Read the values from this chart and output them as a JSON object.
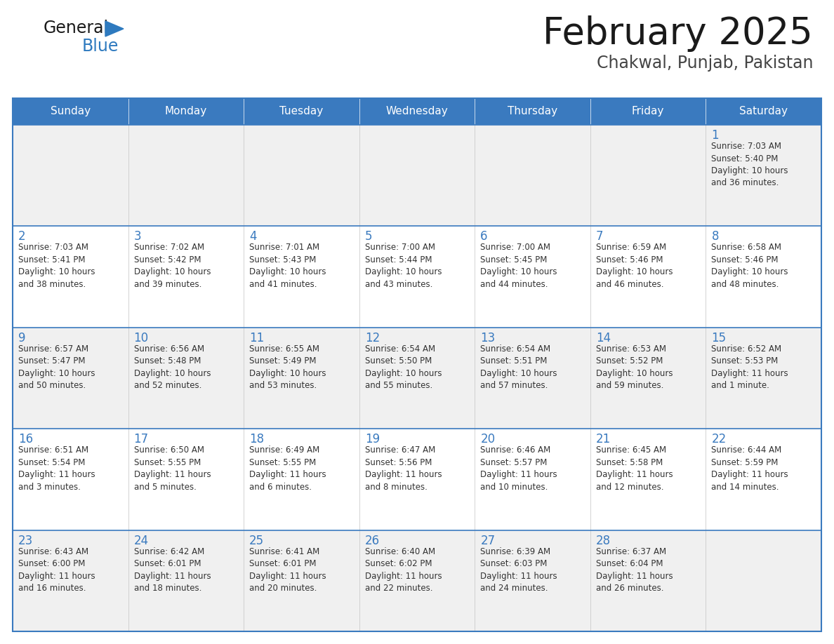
{
  "title": "February 2025",
  "subtitle": "Chakwal, Punjab, Pakistan",
  "header_bg": "#3a7abf",
  "header_text_color": "#ffffff",
  "cell_bg_odd": "#f0f0f0",
  "cell_bg_even": "#ffffff",
  "cell_text_color": "#333333",
  "day_number_color": "#3a7abf",
  "border_color": "#3a7abf",
  "separator_color": "#3a7abf",
  "days_of_week": [
    "Sunday",
    "Monday",
    "Tuesday",
    "Wednesday",
    "Thursday",
    "Friday",
    "Saturday"
  ],
  "weeks": [
    [
      {
        "day": null,
        "info": null
      },
      {
        "day": null,
        "info": null
      },
      {
        "day": null,
        "info": null
      },
      {
        "day": null,
        "info": null
      },
      {
        "day": null,
        "info": null
      },
      {
        "day": null,
        "info": null
      },
      {
        "day": 1,
        "info": "Sunrise: 7:03 AM\nSunset: 5:40 PM\nDaylight: 10 hours\nand 36 minutes."
      }
    ],
    [
      {
        "day": 2,
        "info": "Sunrise: 7:03 AM\nSunset: 5:41 PM\nDaylight: 10 hours\nand 38 minutes."
      },
      {
        "day": 3,
        "info": "Sunrise: 7:02 AM\nSunset: 5:42 PM\nDaylight: 10 hours\nand 39 minutes."
      },
      {
        "day": 4,
        "info": "Sunrise: 7:01 AM\nSunset: 5:43 PM\nDaylight: 10 hours\nand 41 minutes."
      },
      {
        "day": 5,
        "info": "Sunrise: 7:00 AM\nSunset: 5:44 PM\nDaylight: 10 hours\nand 43 minutes."
      },
      {
        "day": 6,
        "info": "Sunrise: 7:00 AM\nSunset: 5:45 PM\nDaylight: 10 hours\nand 44 minutes."
      },
      {
        "day": 7,
        "info": "Sunrise: 6:59 AM\nSunset: 5:46 PM\nDaylight: 10 hours\nand 46 minutes."
      },
      {
        "day": 8,
        "info": "Sunrise: 6:58 AM\nSunset: 5:46 PM\nDaylight: 10 hours\nand 48 minutes."
      }
    ],
    [
      {
        "day": 9,
        "info": "Sunrise: 6:57 AM\nSunset: 5:47 PM\nDaylight: 10 hours\nand 50 minutes."
      },
      {
        "day": 10,
        "info": "Sunrise: 6:56 AM\nSunset: 5:48 PM\nDaylight: 10 hours\nand 52 minutes."
      },
      {
        "day": 11,
        "info": "Sunrise: 6:55 AM\nSunset: 5:49 PM\nDaylight: 10 hours\nand 53 minutes."
      },
      {
        "day": 12,
        "info": "Sunrise: 6:54 AM\nSunset: 5:50 PM\nDaylight: 10 hours\nand 55 minutes."
      },
      {
        "day": 13,
        "info": "Sunrise: 6:54 AM\nSunset: 5:51 PM\nDaylight: 10 hours\nand 57 minutes."
      },
      {
        "day": 14,
        "info": "Sunrise: 6:53 AM\nSunset: 5:52 PM\nDaylight: 10 hours\nand 59 minutes."
      },
      {
        "day": 15,
        "info": "Sunrise: 6:52 AM\nSunset: 5:53 PM\nDaylight: 11 hours\nand 1 minute."
      }
    ],
    [
      {
        "day": 16,
        "info": "Sunrise: 6:51 AM\nSunset: 5:54 PM\nDaylight: 11 hours\nand 3 minutes."
      },
      {
        "day": 17,
        "info": "Sunrise: 6:50 AM\nSunset: 5:55 PM\nDaylight: 11 hours\nand 5 minutes."
      },
      {
        "day": 18,
        "info": "Sunrise: 6:49 AM\nSunset: 5:55 PM\nDaylight: 11 hours\nand 6 minutes."
      },
      {
        "day": 19,
        "info": "Sunrise: 6:47 AM\nSunset: 5:56 PM\nDaylight: 11 hours\nand 8 minutes."
      },
      {
        "day": 20,
        "info": "Sunrise: 6:46 AM\nSunset: 5:57 PM\nDaylight: 11 hours\nand 10 minutes."
      },
      {
        "day": 21,
        "info": "Sunrise: 6:45 AM\nSunset: 5:58 PM\nDaylight: 11 hours\nand 12 minutes."
      },
      {
        "day": 22,
        "info": "Sunrise: 6:44 AM\nSunset: 5:59 PM\nDaylight: 11 hours\nand 14 minutes."
      }
    ],
    [
      {
        "day": 23,
        "info": "Sunrise: 6:43 AM\nSunset: 6:00 PM\nDaylight: 11 hours\nand 16 minutes."
      },
      {
        "day": 24,
        "info": "Sunrise: 6:42 AM\nSunset: 6:01 PM\nDaylight: 11 hours\nand 18 minutes."
      },
      {
        "day": 25,
        "info": "Sunrise: 6:41 AM\nSunset: 6:01 PM\nDaylight: 11 hours\nand 20 minutes."
      },
      {
        "day": 26,
        "info": "Sunrise: 6:40 AM\nSunset: 6:02 PM\nDaylight: 11 hours\nand 22 minutes."
      },
      {
        "day": 27,
        "info": "Sunrise: 6:39 AM\nSunset: 6:03 PM\nDaylight: 11 hours\nand 24 minutes."
      },
      {
        "day": 28,
        "info": "Sunrise: 6:37 AM\nSunset: 6:04 PM\nDaylight: 11 hours\nand 26 minutes."
      },
      {
        "day": null,
        "info": null
      }
    ]
  ]
}
